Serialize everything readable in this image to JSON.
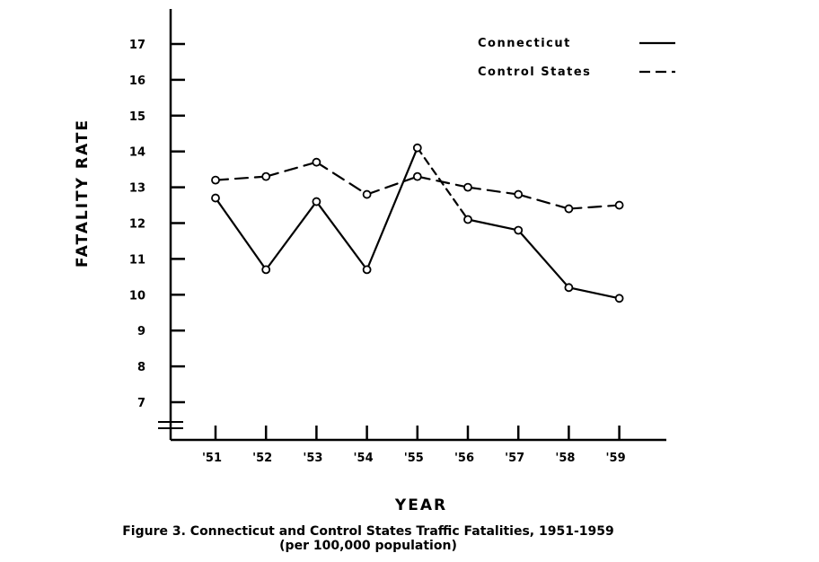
{
  "chart_data": {
    "type": "line",
    "categories": [
      "'51",
      "'52",
      "'53",
      "'54",
      "'55",
      "'56",
      "'57",
      "'58",
      "'59"
    ],
    "ylabel": "FATALITY RATE",
    "xlabel": "YEAR",
    "ylim": [
      6.2,
      17.5
    ],
    "y_ticks": [
      7,
      8,
      9,
      10,
      11,
      12,
      13,
      14,
      15,
      16,
      17
    ],
    "y_tick_labels": [
      "7",
      "8",
      "9",
      "10",
      "11",
      "12",
      "13",
      "14",
      "15",
      "16",
      "17"
    ],
    "series": [
      {
        "name": "Connecticut",
        "style": "solid",
        "values": [
          12.7,
          10.7,
          12.6,
          10.7,
          14.1,
          12.1,
          11.8,
          10.2,
          9.9
        ],
        "segment_styles": [
          "solid",
          "solid",
          "solid",
          "solid",
          "dashed",
          "solid",
          "solid",
          "solid"
        ]
      },
      {
        "name": "Control States",
        "style": "dashed",
        "values": [
          13.2,
          13.3,
          13.7,
          12.8,
          13.3,
          13.0,
          12.8,
          12.4,
          12.5
        ]
      }
    ],
    "legend_position": "top-right",
    "grid": false,
    "colors": {
      "line": "#000000",
      "background": "#ffffff"
    }
  },
  "caption": {
    "line1": "Figure 3.   Connecticut and Control States Traffic Fatalities, 1951-1959",
    "line2": "(per 100,000 population)"
  }
}
